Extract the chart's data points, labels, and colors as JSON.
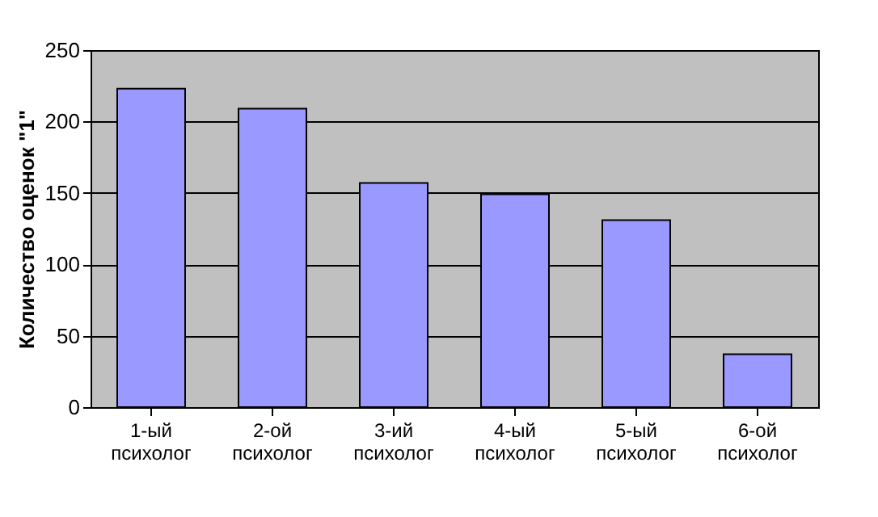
{
  "chart_data": {
    "type": "bar",
    "ylabel": "Количество оценок \"1\"",
    "categories": [
      "1-ый психолог",
      "2-ой психолог",
      "3-ий психолог",
      "4-ый психолог",
      "5-ый психолог",
      "6-ой психолог"
    ],
    "values": [
      223,
      209,
      157,
      149,
      131,
      37
    ],
    "color": "#9999ff",
    "ylim": [
      0,
      250
    ],
    "yticks": [
      0,
      50,
      100,
      150,
      200,
      250
    ],
    "grid": "y"
  }
}
